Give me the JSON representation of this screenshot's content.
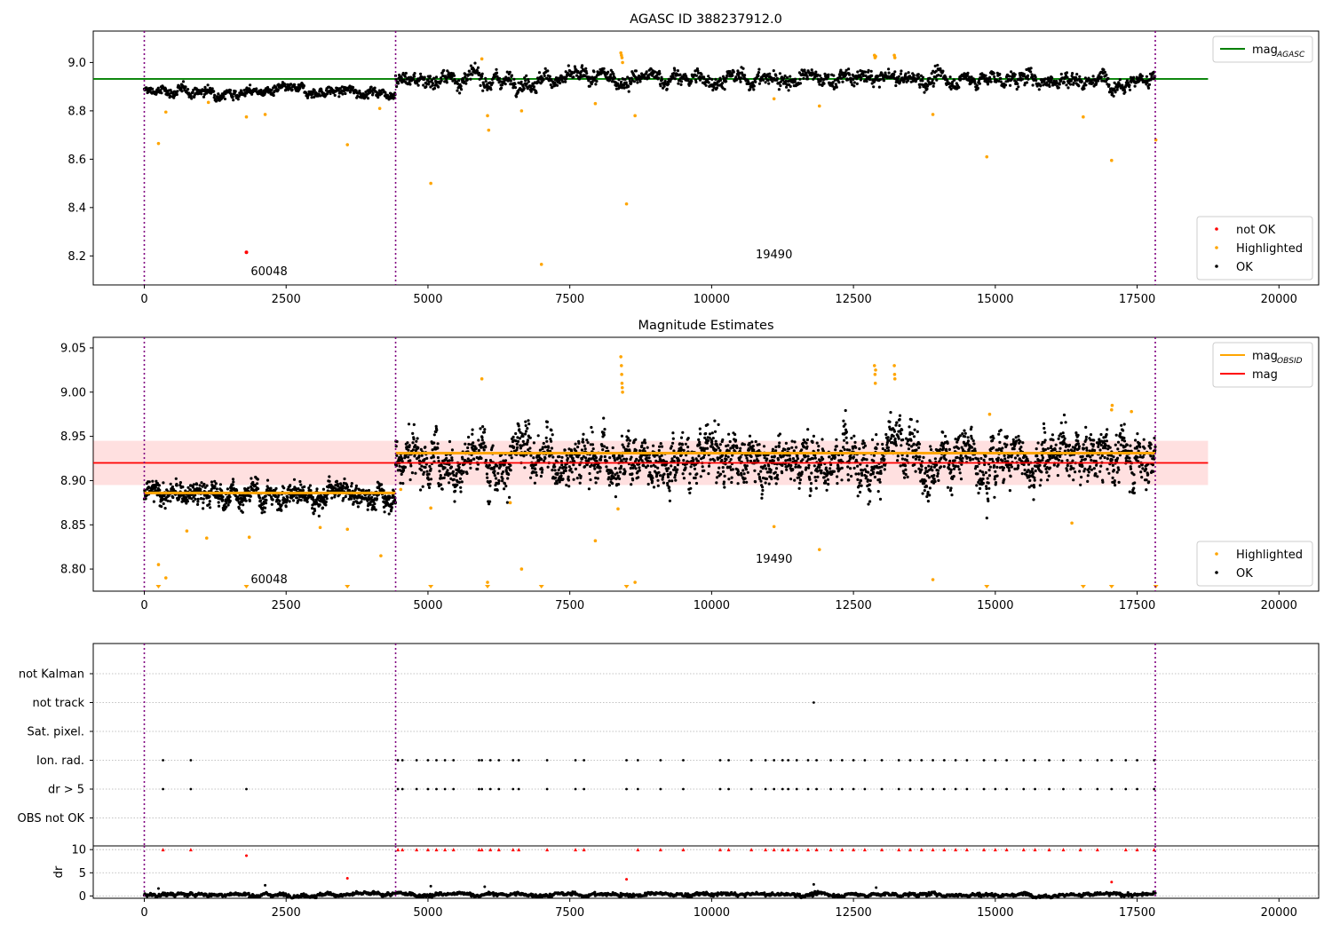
{
  "chart_data": [
    {
      "type": "scatter",
      "title": "AGASC ID 388237912.0",
      "x_range": [
        -900,
        20700
      ],
      "ylim": [
        8.08,
        9.13
      ],
      "x_ticks": [
        0,
        2500,
        5000,
        7500,
        10000,
        12500,
        15000,
        17500,
        20000
      ],
      "y_ticks": [
        8.2,
        8.4,
        8.6,
        8.8,
        9.0
      ],
      "obsid_boundaries": [
        0,
        4430,
        17820
      ],
      "obsid_labels": [
        {
          "text": "60048",
          "x": 2200,
          "y": 8.12
        },
        {
          "text": "19490",
          "x": 11100,
          "y": 8.19
        }
      ],
      "mag_agasc": 8.932,
      "mag_agasc_x_range": [
        -900,
        18750
      ],
      "segments": [
        {
          "x_start": 0,
          "x_end": 4430,
          "center": 8.88,
          "spread": 0.013
        },
        {
          "x_start": 4430,
          "x_end": 17820,
          "center": 8.932,
          "spread": 0.02
        }
      ],
      "not_ok_points": [
        {
          "x": 1800,
          "y": 8.215
        }
      ],
      "highlighted_points": [
        {
          "x": 250,
          "y": 8.665
        },
        {
          "x": 380,
          "y": 8.795
        },
        {
          "x": 1130,
          "y": 8.835
        },
        {
          "x": 1800,
          "y": 8.775
        },
        {
          "x": 2130,
          "y": 8.785
        },
        {
          "x": 3580,
          "y": 8.66
        },
        {
          "x": 4150,
          "y": 8.81
        },
        {
          "x": 5050,
          "y": 8.5
        },
        {
          "x": 5950,
          "y": 9.015
        },
        {
          "x": 6050,
          "y": 8.78
        },
        {
          "x": 6070,
          "y": 8.72
        },
        {
          "x": 6650,
          "y": 8.8
        },
        {
          "x": 7000,
          "y": 8.165
        },
        {
          "x": 7950,
          "y": 8.83
        },
        {
          "x": 8400,
          "y": 9.04
        },
        {
          "x": 8410,
          "y": 9.03
        },
        {
          "x": 8420,
          "y": 9.02
        },
        {
          "x": 8430,
          "y": 9.0
        },
        {
          "x": 8500,
          "y": 8.415
        },
        {
          "x": 8650,
          "y": 8.78
        },
        {
          "x": 11100,
          "y": 8.85
        },
        {
          "x": 11900,
          "y": 8.82
        },
        {
          "x": 12870,
          "y": 9.03
        },
        {
          "x": 12880,
          "y": 9.02
        },
        {
          "x": 12890,
          "y": 9.025
        },
        {
          "x": 13220,
          "y": 9.03
        },
        {
          "x": 13230,
          "y": 9.02
        },
        {
          "x": 13900,
          "y": 8.785
        },
        {
          "x": 14850,
          "y": 8.61
        },
        {
          "x": 16550,
          "y": 8.775
        },
        {
          "x": 17050,
          "y": 8.595
        },
        {
          "x": 17830,
          "y": 8.68
        }
      ],
      "legends": [
        {
          "position": "upper-right",
          "entries": [
            {
              "label_main": "mag",
              "label_sub": "AGASC",
              "color": "#008000",
              "kind": "line"
            }
          ]
        },
        {
          "position": "lower-right",
          "entries": [
            {
              "label": "not OK",
              "color": "#ff0000",
              "kind": "dot"
            },
            {
              "label": "Highlighted",
              "color": "#ffa500",
              "kind": "dot"
            },
            {
              "label": "OK",
              "color": "#000000",
              "kind": "dot"
            }
          ]
        }
      ]
    },
    {
      "type": "scatter",
      "title": "Magnitude Estimates",
      "x_range": [
        -900,
        20700
      ],
      "ylim": [
        8.775,
        9.062
      ],
      "x_ticks": [
        0,
        2500,
        5000,
        7500,
        10000,
        12500,
        15000,
        17500,
        20000
      ],
      "y_ticks": [
        8.8,
        8.85,
        8.9,
        8.95,
        9.0,
        9.05
      ],
      "obsid_boundaries": [
        0,
        4430,
        17820
      ],
      "obsid_labels": [
        {
          "text": "60048",
          "x": 2200,
          "y": 8.784
        },
        {
          "text": "19490",
          "x": 11100,
          "y": 8.807
        }
      ],
      "mag": 8.92,
      "mag_band": [
        8.895,
        8.945
      ],
      "mag_x_range": [
        -900,
        18750
      ],
      "mag_obsid": [
        {
          "x_start": 0,
          "x_end": 4430,
          "value": 8.886
        },
        {
          "x_start": 4430,
          "x_end": 17820,
          "value": 8.931
        }
      ],
      "segments": [
        {
          "x_start": 0,
          "x_end": 4430,
          "center": 8.884,
          "spread": 0.008
        },
        {
          "x_start": 4430,
          "x_end": 17820,
          "center": 8.928,
          "spread": 0.017
        }
      ],
      "highlighted_points": [
        {
          "x": 250,
          "y": 8.805
        },
        {
          "x": 380,
          "y": 8.79
        },
        {
          "x": 750,
          "y": 8.843
        },
        {
          "x": 1100,
          "y": 8.835
        },
        {
          "x": 1850,
          "y": 8.836
        },
        {
          "x": 3100,
          "y": 8.847
        },
        {
          "x": 3580,
          "y": 8.845
        },
        {
          "x": 4170,
          "y": 8.815
        },
        {
          "x": 4520,
          "y": 8.89
        },
        {
          "x": 5050,
          "y": 8.869
        },
        {
          "x": 5950,
          "y": 9.015
        },
        {
          "x": 6050,
          "y": 8.785
        },
        {
          "x": 6450,
          "y": 8.875
        },
        {
          "x": 6650,
          "y": 8.8
        },
        {
          "x": 7950,
          "y": 8.832
        },
        {
          "x": 8400,
          "y": 9.04
        },
        {
          "x": 8410,
          "y": 9.03
        },
        {
          "x": 8415,
          "y": 9.02
        },
        {
          "x": 8420,
          "y": 9.01
        },
        {
          "x": 8425,
          "y": 9.005
        },
        {
          "x": 8430,
          "y": 9.0
        },
        {
          "x": 8350,
          "y": 8.868
        },
        {
          "x": 8650,
          "y": 8.785
        },
        {
          "x": 11100,
          "y": 8.848
        },
        {
          "x": 11900,
          "y": 8.822
        },
        {
          "x": 12870,
          "y": 9.03
        },
        {
          "x": 12880,
          "y": 9.02
        },
        {
          "x": 12885,
          "y": 9.01
        },
        {
          "x": 12890,
          "y": 9.025
        },
        {
          "x": 13220,
          "y": 9.03
        },
        {
          "x": 13225,
          "y": 9.02
        },
        {
          "x": 13230,
          "y": 9.015
        },
        {
          "x": 13900,
          "y": 8.788
        },
        {
          "x": 14900,
          "y": 8.975
        },
        {
          "x": 16350,
          "y": 8.852
        },
        {
          "x": 17050,
          "y": 8.98
        },
        {
          "x": 17060,
          "y": 8.985
        },
        {
          "x": 17400,
          "y": 8.978
        }
      ],
      "off_scale_low_x": [
        250,
        1800,
        3580,
        5050,
        6050,
        7000,
        8500,
        14850,
        16550,
        17050,
        17830
      ],
      "legends": [
        {
          "position": "upper-right",
          "entries": [
            {
              "label_main": "mag",
              "label_sub": "OBSID",
              "color": "#ffa500",
              "kind": "line"
            },
            {
              "label": "mag",
              "color": "#ff0000",
              "kind": "line"
            }
          ]
        },
        {
          "position": "lower-right",
          "entries": [
            {
              "label": "Highlighted",
              "color": "#ffa500",
              "kind": "dot"
            },
            {
              "label": "OK",
              "color": "#000000",
              "kind": "dot"
            }
          ]
        }
      ]
    },
    {
      "type": "scatter",
      "title": "",
      "x_range": [
        -900,
        20700
      ],
      "x_ticks": [
        0,
        2500,
        5000,
        7500,
        10000,
        12500,
        15000,
        17500,
        20000
      ],
      "obsid_boundaries": [
        0,
        4430,
        17820
      ],
      "flag_categories": [
        "not Kalman",
        "not track",
        "Sat. pixel.",
        "Ion. rad.",
        "dr > 5",
        "OBS not OK"
      ],
      "flag_points": {
        "not track": [
          11800
        ],
        "Ion. rad.": [
          330,
          820,
          4470,
          4550,
          4800,
          5000,
          5150,
          5300,
          5450,
          5900,
          5950,
          6100,
          6250,
          6500,
          6600,
          7100,
          7600,
          7750,
          8500,
          8700,
          9100,
          9500,
          10150,
          10300,
          10700,
          10950,
          11100,
          11250,
          11350,
          11500,
          11700,
          11850,
          12100,
          12300,
          12500,
          12700,
          13000,
          13300,
          13500,
          13700,
          13900,
          14100,
          14300,
          14500,
          14800,
          15000,
          15200,
          15500,
          15700,
          15950,
          16200,
          16500,
          16800,
          17050,
          17300,
          17500,
          17800
        ],
        "dr > 5": [
          330,
          820,
          1800,
          4470,
          4550,
          4800,
          5000,
          5150,
          5300,
          5450,
          5900,
          5950,
          6100,
          6250,
          6500,
          6600,
          7100,
          7600,
          7750,
          8500,
          8700,
          9100,
          9500,
          10150,
          10300,
          10700,
          10950,
          11100,
          11250,
          11350,
          11500,
          11700,
          11850,
          12100,
          12300,
          12500,
          12700,
          13000,
          13300,
          13500,
          13700,
          13900,
          14100,
          14300,
          14500,
          14800,
          15000,
          15200,
          15500,
          15700,
          15950,
          16200,
          16500,
          16800,
          17050,
          17300,
          17500,
          17800
        ]
      },
      "dr_subplot": {
        "ylabel": "dr",
        "ylim": [
          -0.5,
          10.8
        ],
        "y_ticks": [
          0,
          5,
          10
        ],
        "baseline": {
          "x_start": 0,
          "x_end": 17820,
          "center": 0.3,
          "spread": 0.25
        },
        "capped_value": 10,
        "capped_x": [
          330,
          820,
          4470,
          4550,
          4800,
          5000,
          5150,
          5300,
          5450,
          5900,
          5950,
          6100,
          6250,
          6500,
          6600,
          7100,
          7600,
          7750,
          8700,
          9100,
          9500,
          10150,
          10300,
          10700,
          10950,
          11100,
          11250,
          11350,
          11500,
          11700,
          11850,
          12100,
          12300,
          12500,
          12700,
          13000,
          13300,
          13500,
          13700,
          13900,
          14100,
          14300,
          14500,
          14800,
          15000,
          15200,
          15500,
          15700,
          15950,
          16200,
          16500,
          16800,
          17300,
          17500,
          17800
        ],
        "red_points": [
          {
            "x": 1800,
            "y": 8.7
          },
          {
            "x": 3580,
            "y": 3.8
          },
          {
            "x": 8500,
            "y": 3.6
          },
          {
            "x": 17050,
            "y": 3.0
          }
        ],
        "black_points": [
          {
            "x": 250,
            "y": 1.6
          },
          {
            "x": 2130,
            "y": 2.3
          },
          {
            "x": 5050,
            "y": 2.1
          },
          {
            "x": 6000,
            "y": 2.0
          },
          {
            "x": 11800,
            "y": 2.5
          },
          {
            "x": 12900,
            "y": 1.8
          }
        ]
      }
    }
  ]
}
